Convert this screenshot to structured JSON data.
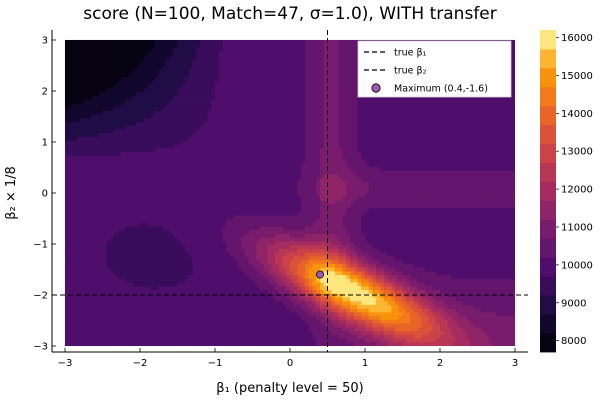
{
  "chart_data": {
    "type": "heatmap",
    "subtype": "filled-contour",
    "title": "score (N=100, Match=47, σ=1.0), WITH transfer",
    "xlabel": "β₁ (penalty level = 50)",
    "ylabel": "β₂ × 1/8",
    "xlim": [
      -3,
      3
    ],
    "ylim": [
      -3,
      3
    ],
    "x_ticks": [
      -3,
      -2,
      -1,
      0,
      1,
      2,
      3
    ],
    "y_ticks": [
      -3,
      -2,
      -1,
      0,
      1,
      2,
      3
    ],
    "x_tick_labels": [
      "−3",
      "−2",
      "−1",
      "0",
      "1",
      "2",
      "3"
    ],
    "y_tick_labels": [
      "−3",
      "−2",
      "−1",
      "0",
      "1",
      "2",
      "3"
    ],
    "grid": true,
    "colormap": "inferno",
    "colorbar": {
      "levels": [
        8000,
        9000,
        10000,
        11000,
        12000,
        13000,
        14000,
        15000,
        16000
      ],
      "labels": [
        "8000",
        "9000",
        "10000",
        "11000",
        "12000",
        "13000",
        "14000",
        "15000",
        "16000"
      ],
      "min": 7700,
      "max": 16200,
      "band_step": 500
    },
    "reference_lines": [
      {
        "name": "true β₁",
        "orientation": "vertical",
        "value": 0.5,
        "style": "dashed"
      },
      {
        "name": "true β₂",
        "orientation": "horizontal",
        "value": -2.0,
        "style": "dashed"
      }
    ],
    "maximum": {
      "name": "Maximum (0.4,-1.6)",
      "x": 0.4,
      "y": -1.6,
      "color": "#9b59b6"
    },
    "legend": {
      "placement": "top-right",
      "entries": [
        "true β₁",
        "true β₂",
        "Maximum (0.4,-1.6)"
      ]
    }
  }
}
